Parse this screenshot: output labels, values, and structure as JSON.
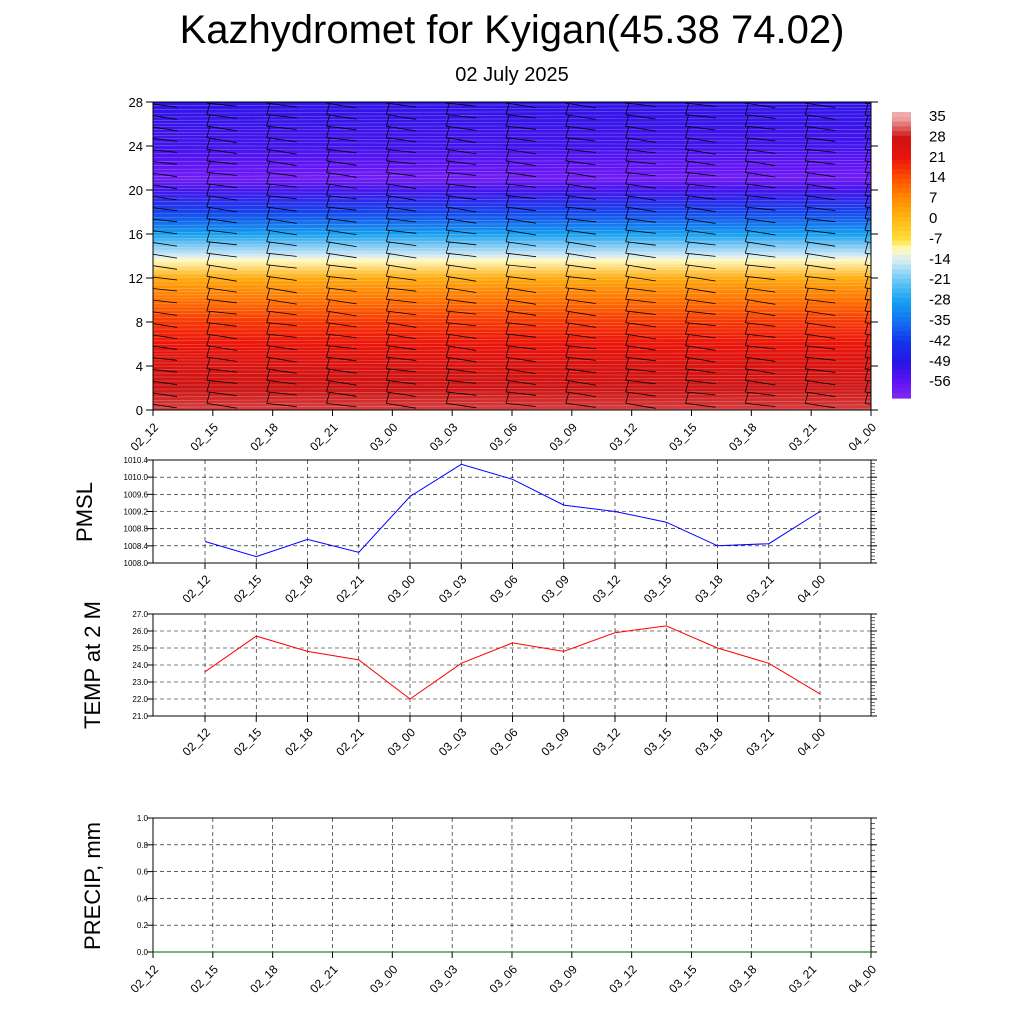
{
  "title": "Kazhydromet for Kyigan(45.38 74.02)",
  "subtitle": "02 July 2025",
  "time_labels": [
    "02_12",
    "02_15",
    "02_18",
    "02_21",
    "03_00",
    "03_03",
    "03_06",
    "03_09",
    "03_12",
    "03_15",
    "03_18",
    "03_21",
    "04_00"
  ],
  "colors": {
    "pmsl_line": "#0000ff",
    "temp_line": "#ff0000",
    "precip_line": "#006400"
  },
  "chart_data": [
    {
      "type": "heatmap",
      "name": "cross-section temperature with wind barbs",
      "x": [
        "02_12",
        "02_15",
        "02_18",
        "02_21",
        "03_00",
        "03_03",
        "03_06",
        "03_09",
        "03_12",
        "03_15",
        "03_18",
        "03_21",
        "04_00"
      ],
      "y_ticks": [
        0,
        4,
        8,
        12,
        16,
        20,
        24,
        28
      ],
      "ylim": [
        0,
        28
      ],
      "colorbar_labels": [
        "35",
        "28",
        "21",
        "14",
        "7",
        "0",
        "-7",
        "-14",
        "-21",
        "-28",
        "-35",
        "-42",
        "-49",
        "-56"
      ],
      "temperature_profile": [
        {
          "level": 0,
          "value": 30
        },
        {
          "level": 2,
          "value": 28
        },
        {
          "level": 4,
          "value": 25
        },
        {
          "level": 6,
          "value": 21
        },
        {
          "level": 8,
          "value": 17
        },
        {
          "level": 10,
          "value": 10
        },
        {
          "level": 12,
          "value": 2
        },
        {
          "level": 13.6,
          "value": -10
        },
        {
          "level": 14,
          "value": -14
        },
        {
          "level": 16,
          "value": -28
        },
        {
          "level": 18,
          "value": -40
        },
        {
          "level": 20,
          "value": -52
        },
        {
          "level": 21,
          "value": -58
        },
        {
          "level": 22,
          "value": -56
        },
        {
          "level": 24,
          "value": -52
        },
        {
          "level": 28,
          "value": -50
        }
      ]
    },
    {
      "type": "line",
      "ylabel": "PMSL",
      "x": [
        "02_12",
        "02_15",
        "02_18",
        "02_21",
        "03_00",
        "03_03",
        "03_06",
        "03_09",
        "03_12",
        "03_15",
        "03_18",
        "03_21",
        "04_00"
      ],
      "ylim": [
        1008.0,
        1010.4
      ],
      "y_ticks": [
        "1008.0",
        "1008.4",
        "1008.8",
        "1009.2",
        "1009.6",
        "1010.0",
        "1010.4"
      ],
      "values": [
        1008.5,
        1008.15,
        1008.55,
        1008.25,
        1009.55,
        1010.3,
        1009.95,
        1009.35,
        1009.2,
        1008.95,
        1008.4,
        1008.45,
        1009.2
      ]
    },
    {
      "type": "line",
      "ylabel": "TEMP at 2 M",
      "x": [
        "02_12",
        "02_15",
        "02_18",
        "02_21",
        "03_00",
        "03_03",
        "03_06",
        "03_09",
        "03_12",
        "03_15",
        "03_18",
        "03_21",
        "04_00"
      ],
      "ylim": [
        21.0,
        27.0
      ],
      "y_ticks": [
        "21.0",
        "22.0",
        "23.0",
        "24.0",
        "25.0",
        "26.0",
        "27.0"
      ],
      "values": [
        23.6,
        25.7,
        24.8,
        24.3,
        22.0,
        24.1,
        25.3,
        24.8,
        25.9,
        26.3,
        25.0,
        24.1,
        22.3
      ]
    },
    {
      "type": "line",
      "ylabel": "PRECIP, mm",
      "x": [
        "02_12",
        "02_15",
        "02_18",
        "02_21",
        "03_00",
        "03_03",
        "03_06",
        "03_09",
        "03_12",
        "03_15",
        "03_18",
        "03_21",
        "04_00"
      ],
      "ylim": [
        0.0,
        1.0
      ],
      "y_ticks": [
        "0.0",
        "0.2",
        "0.4",
        "0.6",
        "0.8",
        "1.0"
      ],
      "values": [
        0,
        0,
        0,
        0,
        0,
        0,
        0,
        0,
        0,
        0,
        0,
        0,
        0
      ]
    }
  ]
}
